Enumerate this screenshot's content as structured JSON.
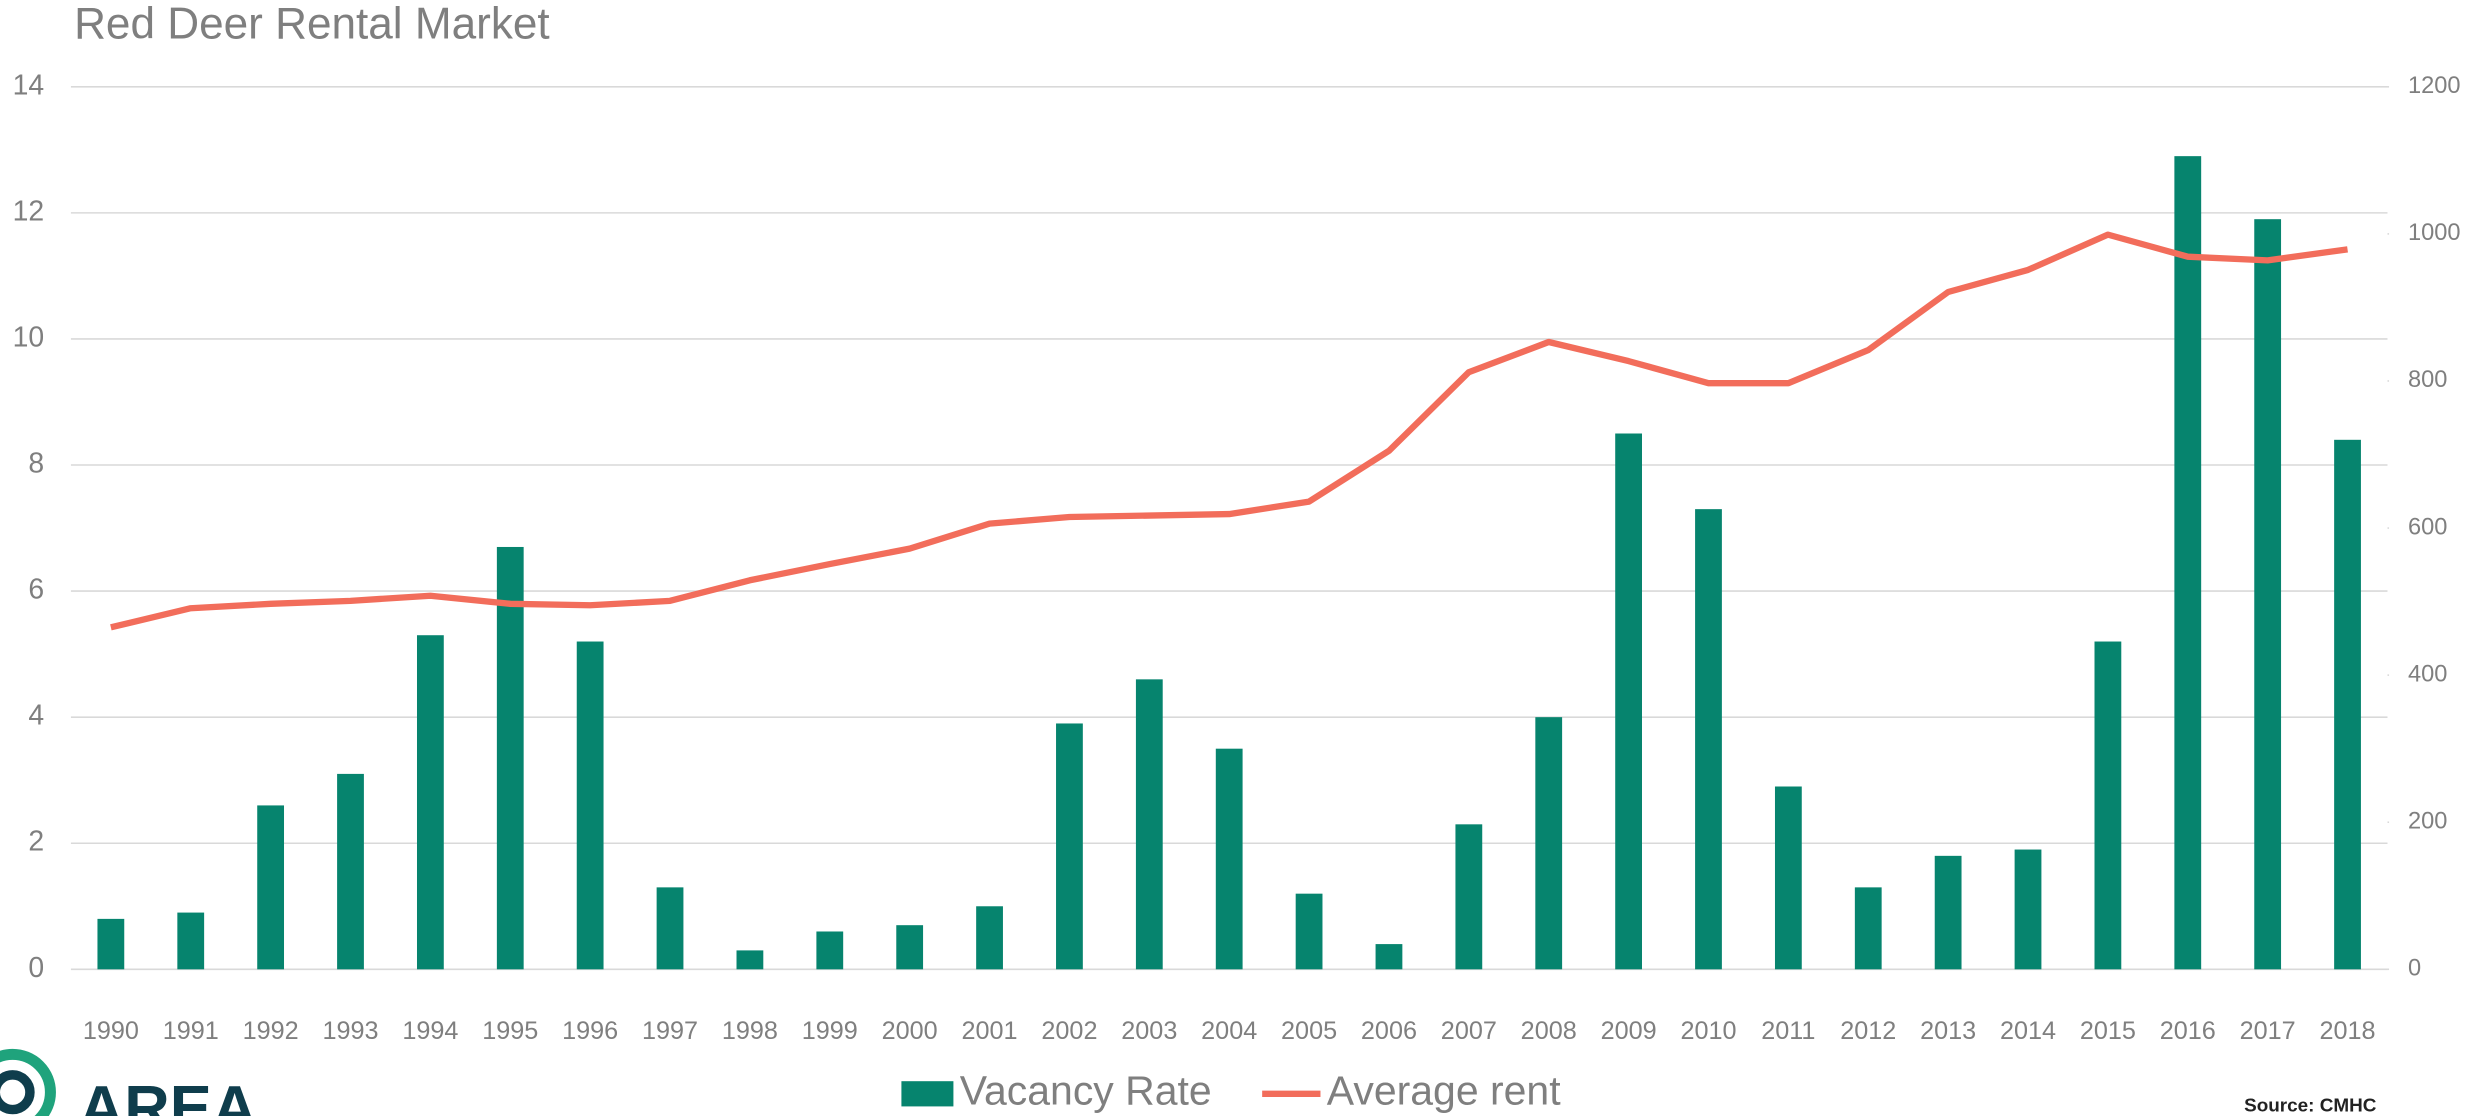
{
  "chart_data": {
    "type": "bar",
    "title": "Red Deer Rental Market",
    "categories": [
      "1990",
      "1991",
      "1992",
      "1993",
      "1994",
      "1995",
      "1996",
      "1997",
      "1998",
      "1999",
      "2000",
      "2001",
      "2002",
      "2003",
      "2004",
      "2005",
      "2006",
      "2007",
      "2008",
      "2009",
      "2010",
      "2011",
      "2012",
      "2013",
      "2014",
      "2015",
      "2016",
      "2017",
      "2018"
    ],
    "series": [
      {
        "name": "Vacancy Rate",
        "color": "#06846e",
        "type": "bar",
        "values": [
          0.8,
          0.9,
          2.6,
          3.1,
          5.3,
          6.7,
          5.2,
          1.3,
          0.3,
          0.6,
          0.7,
          1.0,
          3.9,
          4.6,
          3.5,
          1.2,
          0.4,
          2.3,
          4.0,
          8.5,
          7.3,
          2.9,
          1.3,
          1.8,
          1.9,
          5.2,
          12.9,
          11.9,
          8.4
        ]
      },
      {
        "name": "Average rent",
        "color": "#f26d5b",
        "type": "line",
        "axis": "y2",
        "values": [
          465,
          491,
          497,
          501,
          508,
          497,
          495,
          501,
          529,
          551,
          572,
          606,
          615,
          617,
          619,
          636,
          705,
          812,
          853,
          827,
          797,
          797,
          842,
          921,
          951,
          999,
          969,
          964,
          979
        ]
      }
    ],
    "ylim": [
      0,
      14
    ],
    "yticks": [
      0,
      2,
      4,
      6,
      8,
      10,
      12,
      14
    ],
    "y2lim": [
      0,
      1200
    ],
    "y2ticks": [
      0,
      200,
      400,
      600,
      800,
      1000,
      1200
    ],
    "grid": true,
    "legend": "bottom",
    "source": "Source: CMHC",
    "logo": "AREA"
  }
}
